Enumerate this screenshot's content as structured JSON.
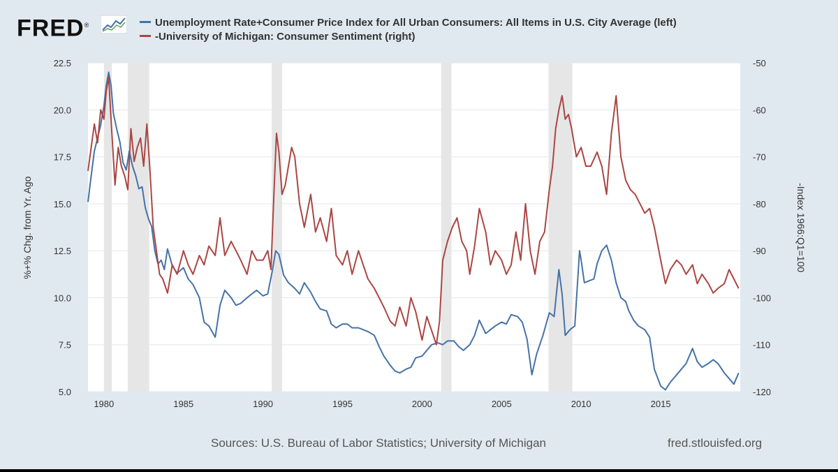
{
  "header": {
    "logo_text": "FRED",
    "logo_mark": "®"
  },
  "colors": {
    "blue": "#4572a7",
    "red": "#aa4643",
    "recession": "#e6e6e6",
    "grid": "#e6e6e6"
  },
  "footer": {
    "sources": "Sources: U.S. Bureau of Labor Statistics; University of Michigan",
    "site": "fred.stlouisfed.org"
  },
  "chart_data": {
    "type": "line",
    "title": "",
    "xlim": [
      1979,
      2020
    ],
    "x_ticks": [
      1980,
      1985,
      1990,
      1995,
      2000,
      2005,
      2010,
      2015
    ],
    "left_axis": {
      "label": "%+% Chg. from Yr. Ago",
      "range": [
        5.0,
        22.5
      ],
      "ticks": [
        "5.0",
        "7.5",
        "10.0",
        "12.5",
        "15.0",
        "17.5",
        "20.0",
        "22.5"
      ],
      "tick_values": [
        5.0,
        7.5,
        10.0,
        12.5,
        15.0,
        17.5,
        20.0,
        22.5
      ]
    },
    "right_axis": {
      "label": "-Index 1966:Q1=100",
      "range": [
        -120,
        -50
      ],
      "ticks": [
        "-120",
        "-110",
        "-100",
        "-90",
        "-80",
        "-70",
        "-60",
        "-50"
      ],
      "tick_values": [
        -120,
        -110,
        -100,
        -90,
        -80,
        -70,
        -60,
        -50
      ]
    },
    "recessions": [
      [
        1980.0,
        1980.5
      ],
      [
        1981.5,
        1982.85
      ],
      [
        1990.55,
        1991.2
      ],
      [
        2001.2,
        2001.85
      ],
      [
        2007.95,
        2009.45
      ]
    ],
    "series": [
      {
        "name": "Unemployment Rate+Consumer Price Index for All Urban Consumers: All Items in U.S. City Average (left)",
        "axis": "left",
        "color": "#4572a7",
        "x": [
          1979.0,
          1979.2,
          1979.4,
          1979.6,
          1979.8,
          1980.0,
          1980.15,
          1980.3,
          1980.45,
          1980.6,
          1980.8,
          1981.0,
          1981.2,
          1981.4,
          1981.6,
          1981.8,
          1982.0,
          1982.2,
          1982.4,
          1982.6,
          1982.8,
          1983.0,
          1983.2,
          1983.4,
          1983.6,
          1983.8,
          1984.0,
          1984.3,
          1984.6,
          1985.0,
          1985.3,
          1985.6,
          1986.0,
          1986.3,
          1986.6,
          1987.0,
          1987.3,
          1987.6,
          1988.0,
          1988.3,
          1988.6,
          1989.0,
          1989.3,
          1989.6,
          1990.0,
          1990.3,
          1990.6,
          1990.8,
          1991.0,
          1991.3,
          1991.6,
          1992.0,
          1992.3,
          1992.6,
          1993.0,
          1993.3,
          1993.6,
          1994.0,
          1994.3,
          1994.6,
          1995.0,
          1995.3,
          1995.6,
          1996.0,
          1996.3,
          1996.6,
          1997.0,
          1997.3,
          1997.6,
          1998.0,
          1998.3,
          1998.6,
          1999.0,
          1999.3,
          1999.6,
          2000.0,
          2000.3,
          2000.6,
          2001.0,
          2001.3,
          2001.6,
          2002.0,
          2002.3,
          2002.6,
          2003.0,
          2003.3,
          2003.6,
          2004.0,
          2004.3,
          2004.6,
          2005.0,
          2005.3,
          2005.6,
          2006.0,
          2006.3,
          2006.6,
          2006.9,
          2007.2,
          2007.6,
          2008.0,
          2008.3,
          2008.6,
          2008.8,
          2009.0,
          2009.3,
          2009.6,
          2009.9,
          2010.0,
          2010.2,
          2010.5,
          2010.8,
          2011.0,
          2011.3,
          2011.6,
          2011.9,
          2012.2,
          2012.5,
          2012.8,
          2013.0,
          2013.3,
          2013.6,
          2014.0,
          2014.3,
          2014.6,
          2015.0,
          2015.3,
          2015.6,
          2016.0,
          2016.3,
          2016.6,
          2017.0,
          2017.3,
          2017.6,
          2018.0,
          2018.3,
          2018.6,
          2019.0,
          2019.3,
          2019.6,
          2019.9
        ],
        "values": [
          15.1,
          16.5,
          17.8,
          18.5,
          19.2,
          20.2,
          21.3,
          22.0,
          21.3,
          19.8,
          19.0,
          18.3,
          17.2,
          16.8,
          17.8,
          17.0,
          16.5,
          15.8,
          15.9,
          14.8,
          14.2,
          13.8,
          12.5,
          11.8,
          12.0,
          11.5,
          12.6,
          11.7,
          11.3,
          11.6,
          11.0,
          10.7,
          10.0,
          8.7,
          8.5,
          7.9,
          9.6,
          10.4,
          10.0,
          9.6,
          9.7,
          10.0,
          10.2,
          10.4,
          10.1,
          10.2,
          11.5,
          12.5,
          12.3,
          11.2,
          10.8,
          10.5,
          10.2,
          10.8,
          10.3,
          9.8,
          9.4,
          9.3,
          8.6,
          8.4,
          8.6,
          8.6,
          8.4,
          8.4,
          8.3,
          8.2,
          8.0,
          7.4,
          6.9,
          6.4,
          6.1,
          6.0,
          6.2,
          6.3,
          6.8,
          6.9,
          7.2,
          7.5,
          7.6,
          7.5,
          7.7,
          7.7,
          7.4,
          7.2,
          7.5,
          8.0,
          8.8,
          8.1,
          8.3,
          8.5,
          8.7,
          8.6,
          9.1,
          9.0,
          8.7,
          7.8,
          5.9,
          7.0,
          8.0,
          9.2,
          9.0,
          11.5,
          10.2,
          8.0,
          8.3,
          8.5,
          12.5,
          12.0,
          10.8,
          10.9,
          11.0,
          11.8,
          12.5,
          12.8,
          12.0,
          10.8,
          10.0,
          9.8,
          9.3,
          8.8,
          8.5,
          8.3,
          7.9,
          6.2,
          5.3,
          5.1,
          5.5,
          5.9,
          6.2,
          6.5,
          7.3,
          6.6,
          6.3,
          6.5,
          6.7,
          6.5,
          6.0,
          5.7,
          5.4,
          6.0
        ]
      },
      {
        "name": "-University of Michigan: Consumer Sentiment (right)",
        "axis": "right",
        "color": "#aa4643",
        "x": [
          1979.0,
          1979.2,
          1979.4,
          1979.6,
          1979.8,
          1980.0,
          1980.15,
          1980.3,
          1980.5,
          1980.7,
          1980.9,
          1981.1,
          1981.3,
          1981.5,
          1981.7,
          1981.9,
          1982.1,
          1982.3,
          1982.5,
          1982.7,
          1982.9,
          1983.1,
          1983.3,
          1983.5,
          1983.7,
          1984.0,
          1984.3,
          1984.6,
          1985.0,
          1985.3,
          1985.6,
          1986.0,
          1986.3,
          1986.6,
          1987.0,
          1987.3,
          1987.6,
          1988.0,
          1988.3,
          1988.6,
          1989.0,
          1989.3,
          1989.6,
          1990.0,
          1990.3,
          1990.5,
          1990.7,
          1990.85,
          1991.0,
          1991.2,
          1991.4,
          1991.6,
          1991.8,
          1992.0,
          1992.3,
          1992.6,
          1993.0,
          1993.3,
          1993.6,
          1994.0,
          1994.3,
          1994.6,
          1995.0,
          1995.3,
          1995.6,
          1996.0,
          1996.3,
          1996.6,
          1997.0,
          1997.3,
          1997.6,
          1998.0,
          1998.3,
          1998.6,
          1999.0,
          1999.3,
          1999.6,
          2000.0,
          2000.3,
          2000.6,
          2000.9,
          2001.1,
          2001.3,
          2001.6,
          2001.9,
          2002.2,
          2002.5,
          2002.8,
          2003.0,
          2003.3,
          2003.6,
          2004.0,
          2004.3,
          2004.6,
          2005.0,
          2005.3,
          2005.6,
          2005.9,
          2006.2,
          2006.5,
          2006.8,
          2007.1,
          2007.4,
          2007.7,
          2008.0,
          2008.2,
          2008.4,
          2008.6,
          2008.8,
          2009.0,
          2009.2,
          2009.4,
          2009.7,
          2010.0,
          2010.3,
          2010.6,
          2011.0,
          2011.3,
          2011.6,
          2011.9,
          2012.2,
          2012.5,
          2012.8,
          2013.1,
          2013.4,
          2013.7,
          2014.0,
          2014.3,
          2014.6,
          2015.0,
          2015.3,
          2015.6,
          2016.0,
          2016.3,
          2016.6,
          2017.0,
          2017.3,
          2017.6,
          2018.0,
          2018.3,
          2018.6,
          2019.0,
          2019.3,
          2019.6,
          2019.9
        ],
        "values": [
          -73,
          -68,
          -63,
          -67,
          -60,
          -62,
          -56,
          -53,
          -65,
          -76,
          -68,
          -72,
          -74,
          -77,
          -64,
          -71,
          -68,
          -66,
          -72,
          -63,
          -73,
          -85,
          -90,
          -95,
          -96,
          -99,
          -93,
          -95,
          -90,
          -93,
          -95,
          -91,
          -93,
          -89,
          -91,
          -83,
          -91,
          -88,
          -90,
          -92,
          -95,
          -90,
          -92,
          -92,
          -90,
          -94,
          -77,
          -65,
          -69,
          -78,
          -76,
          -72,
          -68,
          -70,
          -80,
          -85,
          -78,
          -86,
          -83,
          -88,
          -81,
          -91,
          -93,
          -90,
          -95,
          -90,
          -93,
          -96,
          -98,
          -100,
          -102,
          -105,
          -106,
          -102,
          -106,
          -100,
          -103,
          -109,
          -104,
          -107,
          -110,
          -105,
          -92,
          -88,
          -85,
          -83,
          -88,
          -90,
          -95,
          -89,
          -81,
          -86,
          -93,
          -90,
          -92,
          -95,
          -93,
          -86,
          -92,
          -80,
          -90,
          -95,
          -88,
          -86,
          -77,
          -72,
          -64,
          -60,
          -57,
          -62,
          -61,
          -64,
          -70,
          -68,
          -72,
          -72,
          -69,
          -72,
          -78,
          -65,
          -57,
          -70,
          -75,
          -77,
          -78,
          -80,
          -82,
          -81,
          -85,
          -92,
          -97,
          -94,
          -92,
          -93,
          -95,
          -93,
          -97,
          -95,
          -97,
          -99,
          -98,
          -97,
          -94,
          -96,
          -98
        ]
      }
    ]
  }
}
